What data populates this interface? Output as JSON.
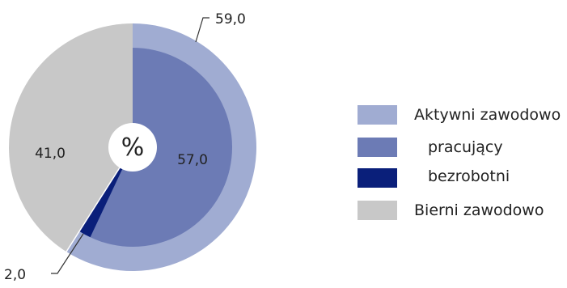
{
  "chart_data": {
    "type": "pie",
    "center_label": "%",
    "outer_ring": [
      {
        "name": "Aktywni zawodowo",
        "value": 59.0,
        "value_label": "59,0",
        "color": "#a0acd2"
      },
      {
        "name": "Bierni zawodowo",
        "value": 41.0,
        "value_label": "41,0",
        "color": "#c8c8c8"
      }
    ],
    "inner_ring": [
      {
        "name": "pracujący",
        "value": 57.0,
        "value_label": "57,0",
        "color": "#6c7bb5"
      },
      {
        "name": "bezrobotni",
        "value": 2.0,
        "value_label": "2,0",
        "color": "#0a1f7a"
      }
    ],
    "legend": {
      "placement": "right",
      "items": [
        {
          "label": "Aktywni zawodowo",
          "color": "#a0acd2"
        },
        {
          "label": "pracujący",
          "color": "#6c7bb5"
        },
        {
          "label": "bezrobotni",
          "color": "#0a1f7a"
        },
        {
          "label": "Bierni zawodowo",
          "color": "#c8c8c8"
        }
      ]
    }
  }
}
